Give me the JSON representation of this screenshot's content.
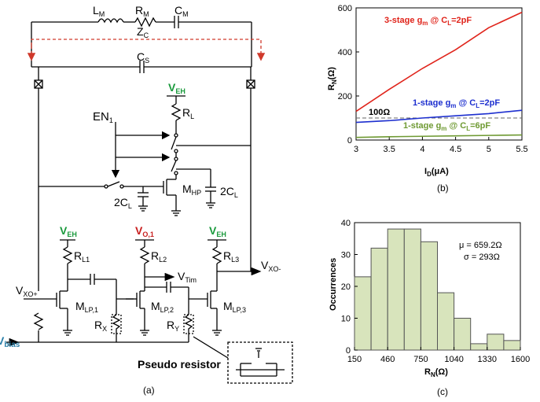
{
  "panel_a": {
    "caption": "(a)",
    "LM": "L",
    "LM_sub": "M",
    "RM": "R",
    "RM_sub": "M",
    "CM": "C",
    "CM_sub": "M",
    "ZC": "Z",
    "ZC_sub": "C",
    "CS": "C",
    "CS_sub": "S",
    "EN1": "EN",
    "EN1_sub": "1",
    "VEH": "V",
    "VEH_sub": "EH",
    "RL": "R",
    "RL_sub": "L",
    "MHP": "M",
    "MHP_sub": "HP",
    "C2L": "2C",
    "C2L_sub": "L",
    "VO1": "V",
    "VO1_sub": "O,1",
    "RL1": "R",
    "RL1_sub": "L1",
    "RL2": "R",
    "RL2_sub": "L2",
    "RL3": "R",
    "RL3_sub": "L3",
    "VXOm": "V",
    "VXOm_sub": "XO-",
    "VXOp": "V",
    "VXOp_sub": "XO+",
    "VTim": "V",
    "VTim_sub": "Tim",
    "MLP1": "M",
    "MLP1_sub": "LP,1",
    "MLP2": "M",
    "MLP2_sub": "LP,2",
    "MLP3": "M",
    "MLP3_sub": "LP,3",
    "RX": "R",
    "RX_sub": "X",
    "RY": "R",
    "RY_sub": "Y",
    "Vbias": "V",
    "Vbias_sub": "bias",
    "pseudo": "Pseudo resistor",
    "colors": {
      "veh": "#1a9a3c",
      "vo1": "#c81e1e",
      "zc": "#d0392b"
    }
  },
  "panel_b": {
    "caption": "(b)",
    "chart_data": {
      "type": "line",
      "xlabel": "I",
      "xlabel_sub": "D",
      "xlabel_unit": "(μA)",
      "ylabel": "R",
      "ylabel_sub": "N",
      "ylabel_unit": "(Ω)",
      "xlim": [
        3,
        5.5
      ],
      "ylim": [
        0,
        600
      ],
      "xticks": [
        "3",
        "3.5",
        "4",
        "4.5",
        "5",
        "5.5"
      ],
      "yticks": [
        "0",
        "200",
        "400",
        "600"
      ],
      "series": [
        {
          "label_pre": "3-stage g",
          "label_sub1": "m",
          "label_mid": " @  C",
          "label_sub2": "L",
          "label_post": "=2pF",
          "color": "#e0241b",
          "x": [
            3,
            3.5,
            4,
            4.5,
            5,
            5.5
          ],
          "y": [
            130,
            230,
            325,
            410,
            510,
            580
          ]
        },
        {
          "label_pre": "1-stage g",
          "label_sub1": "m",
          "label_mid": " @  C",
          "label_sub2": "L",
          "label_post": "=2pF",
          "color": "#1d2fcf",
          "x": [
            3,
            3.5,
            4,
            4.5,
            5,
            5.5
          ],
          "y": [
            80,
            88,
            100,
            110,
            120,
            135
          ]
        },
        {
          "label_pre": "1-stage g",
          "label_sub1": "m",
          "label_mid": " @  C",
          "label_sub2": "L",
          "label_post": "=6pF",
          "color": "#6f9a33",
          "x": [
            3,
            3.5,
            4,
            4.5,
            5,
            5.5
          ],
          "y": [
            12,
            15,
            17,
            19,
            21,
            23
          ]
        }
      ],
      "reference": {
        "value": 100,
        "label": "100Ω",
        "color": "#666666"
      }
    }
  },
  "panel_c": {
    "caption": "(c)",
    "chart_data": {
      "type": "bar",
      "xlabel": "R",
      "xlabel_sub": "N",
      "xlabel_unit": "(Ω)",
      "ylabel": "Occurrences",
      "ylim": [
        0,
        40
      ],
      "yticks": [
        "0",
        "10",
        "20",
        "30",
        "40"
      ],
      "xticks": [
        "150",
        "460",
        "750",
        "1040",
        "1330",
        "1600"
      ],
      "bar_color": "#d8e4bc",
      "edge_color": "#555555",
      "values": [
        23,
        32,
        38,
        38,
        34,
        18,
        10,
        2,
        5,
        3
      ],
      "stats": {
        "mu": "μ = 659.2Ω",
        "sigma": "σ = 293Ω"
      }
    }
  }
}
